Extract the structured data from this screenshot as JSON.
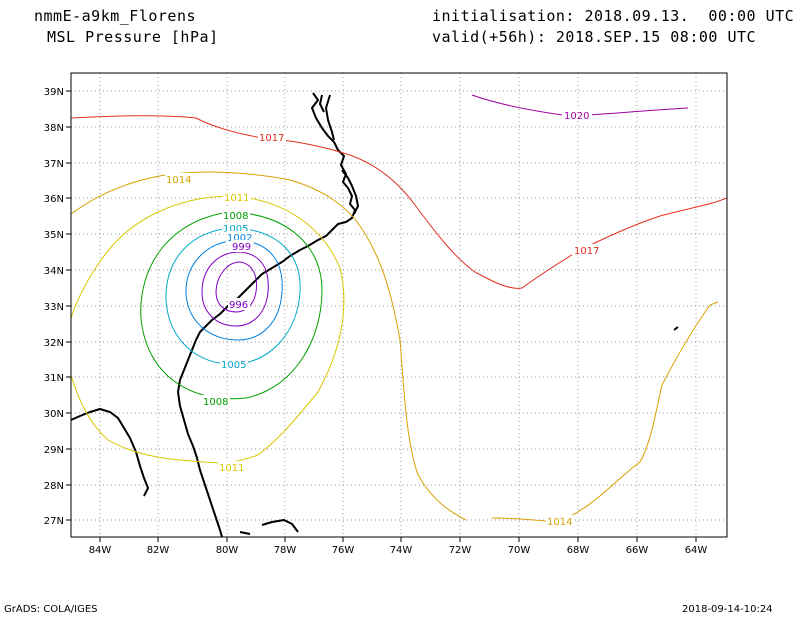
{
  "header": {
    "model": "nmmE-a9km_Florens",
    "field": "MSL Pressure [hPa]",
    "init": "initialisation: 2018.09.13.  00:00 UTC",
    "valid": "valid(+56h): 2018.SEP.15 08:00 UTC"
  },
  "map": {
    "lat_labels": [
      "39N",
      "38N",
      "37N",
      "36N",
      "35N",
      "34N",
      "33N",
      "32N",
      "31N",
      "30N",
      "29N",
      "28N",
      "27N"
    ],
    "lon_labels": [
      "84W",
      "82W",
      "80W",
      "78W",
      "76W",
      "74W",
      "72W",
      "70W",
      "68W",
      "66W",
      "64W"
    ],
    "isobars": [
      {
        "value": 1020,
        "label": "1020",
        "color": "#a000a0"
      },
      {
        "value": 1017,
        "label": "1017",
        "color": "#e03020"
      },
      {
        "value": 1017,
        "label": "1017",
        "color": "#e03020"
      },
      {
        "value": 1014,
        "label": "1014",
        "color": "#d8a000"
      },
      {
        "value": 1014,
        "label": "1014",
        "color": "#d8a000"
      },
      {
        "value": 1011,
        "label": "1011",
        "color": "#d8c800"
      },
      {
        "value": 1011,
        "label": "1011",
        "color": "#d8c800"
      },
      {
        "value": 1008,
        "label": "1008",
        "color": "#00a000"
      },
      {
        "value": 1008,
        "label": "1008",
        "color": "#00a000"
      },
      {
        "value": 1005,
        "label": "1005",
        "color": "#00a8c8"
      },
      {
        "value": 1005,
        "label": "1005",
        "color": "#00a8c8"
      },
      {
        "value": 1002,
        "label": "1002",
        "color": "#0080e0"
      },
      {
        "value": 999,
        "label": "999",
        "color": "#8000c0"
      },
      {
        "value": 996,
        "label": "996",
        "color": "#8000c0"
      }
    ]
  },
  "footer": {
    "left": "GrADS: COLA/IGES",
    "right": "2018-09-14-10:24"
  }
}
